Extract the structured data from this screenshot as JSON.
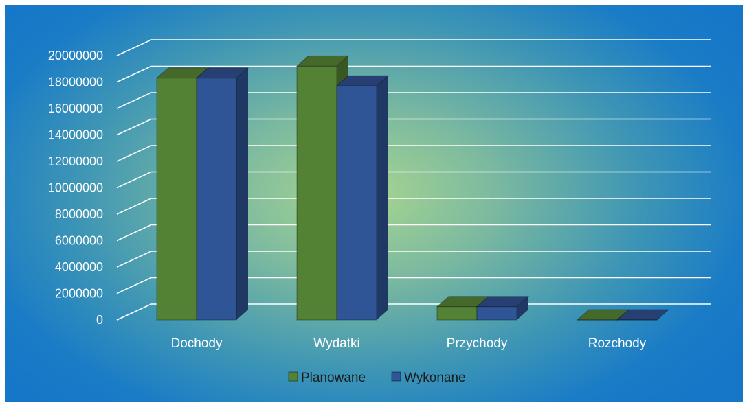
{
  "chart_data": {
    "type": "bar",
    "style": "3d-clustered-column",
    "categories": [
      "Dochody",
      "Wydatki",
      "Przychody",
      "Rozchody"
    ],
    "series": [
      {
        "name": "Planowane",
        "values": [
          18300000,
          19200000,
          1000000,
          0
        ]
      },
      {
        "name": "Wykonane",
        "values": [
          18300000,
          17700000,
          1000000,
          0
        ]
      }
    ],
    "ylim": [
      0,
      20000000
    ],
    "yticks": [
      0,
      2000000,
      4000000,
      6000000,
      8000000,
      10000000,
      12000000,
      14000000,
      16000000,
      18000000,
      20000000
    ],
    "grid": true,
    "legend_position": "bottom",
    "colors": {
      "Planowane": {
        "front": "#548235",
        "side": "#385723",
        "top": "#44692b"
      },
      "Wykonane": {
        "front": "#2f5597",
        "side": "#1f3864",
        "top": "#273f72"
      },
      "grid": "#ffffff",
      "text": "#ffffff",
      "text_dark": "#1a1a1a"
    }
  }
}
